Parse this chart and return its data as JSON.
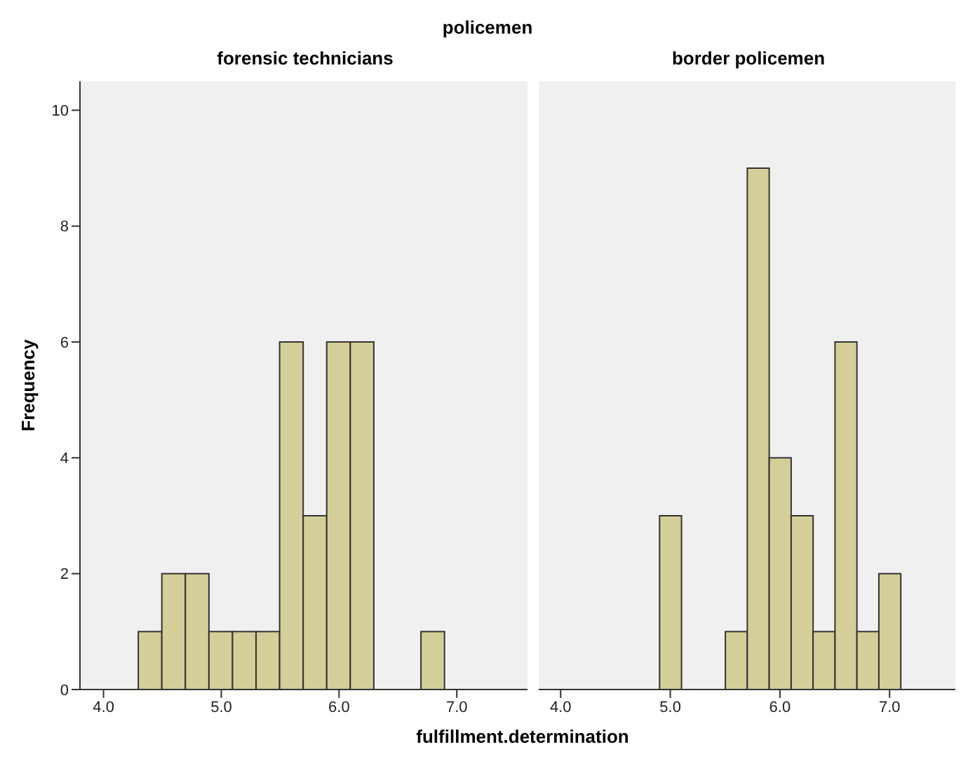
{
  "chart_data": [
    {
      "type": "histogram",
      "title": "policemen",
      "subtitle": "forensic technicians",
      "xlabel": "fulfillment.determination",
      "ylabel": "Frequency",
      "color": "#d4cf98",
      "bins": [
        4.3,
        4.5,
        4.7,
        4.9,
        5.1,
        5.3,
        5.5,
        5.7,
        5.9,
        6.1,
        6.3,
        6.5,
        6.7,
        6.9
      ],
      "values": [
        1,
        2,
        2,
        1,
        1,
        1,
        6,
        3,
        6,
        6,
        0,
        0,
        1
      ],
      "xlim": [
        3.8,
        7.6
      ],
      "xticks": [
        {
          "value": 4,
          "label": "4.0"
        },
        {
          "value": 5,
          "label": "5.0"
        },
        {
          "value": 6,
          "label": "6.0"
        },
        {
          "value": 7,
          "label": "7.0"
        }
      ],
      "ylim": [
        0,
        10.5
      ],
      "yticks": [
        0,
        2,
        4,
        6,
        8,
        10
      ]
    },
    {
      "type": "histogram",
      "subtitle": "border policemen",
      "color": "#d4cf98",
      "bins": [
        4.9,
        5.1,
        5.3,
        5.5,
        5.7,
        5.9,
        6.1,
        6.3,
        6.5,
        6.7,
        6.9,
        7.1
      ],
      "values": [
        3,
        0,
        0,
        1,
        9,
        4,
        3,
        1,
        6,
        1,
        2
      ],
      "xlim": [
        3.8,
        7.6
      ],
      "xticks": [
        {
          "value": 4,
          "label": "4.0"
        },
        {
          "value": 5,
          "label": "5.0"
        },
        {
          "value": 6,
          "label": "6.0"
        },
        {
          "value": 7,
          "label": "7.0"
        }
      ],
      "ylim": [
        0,
        10.5
      ],
      "yticks": [
        0,
        2,
        4,
        6,
        8,
        10
      ],
      "tick_labels": "x"
    }
  ]
}
